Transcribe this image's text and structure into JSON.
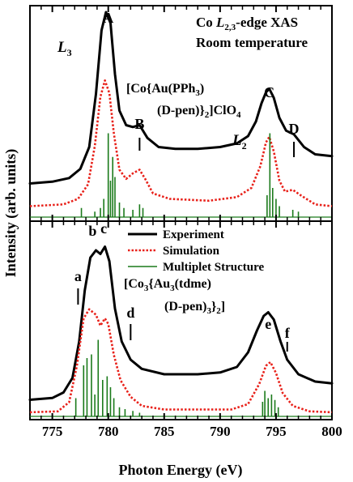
{
  "chart_data": [
    {
      "panel": "top",
      "type": "line",
      "title_line1_prefix": "Co ",
      "title_line1_L": "L",
      "title_line1_sub": "2,3",
      "title_line1_suffix": "-edge XAS",
      "title_line2": "Room temperature",
      "compound_line1": "[Co{Au(PPh",
      "compound_line1_sub": "3",
      "compound_line1_end": ")",
      "compound_line2_a": "(D-pen)}",
      "compound_line2_sub": "2",
      "compound_line2_b": "]ClO",
      "compound_line2_sub2": "4",
      "edge_labels": [
        "L3",
        "L2"
      ],
      "peak_labels": [
        {
          "text": "A",
          "x": 780.0
        },
        {
          "text": "B",
          "x": 782.8
        },
        {
          "text": "C",
          "x": 794.4
        },
        {
          "text": "D",
          "x": 796.6
        }
      ],
      "series": [
        {
          "name": "Experiment",
          "color": "#000000",
          "style": "solid",
          "points": [
            [
              773,
              0.06
            ],
            [
              775,
              0.07
            ],
            [
              776.5,
              0.09
            ],
            [
              777.5,
              0.14
            ],
            [
              778.3,
              0.26
            ],
            [
              778.9,
              0.55
            ],
            [
              779.4,
              0.9
            ],
            [
              779.8,
              1.0
            ],
            [
              780.2,
              0.94
            ],
            [
              780.6,
              0.66
            ],
            [
              781.0,
              0.46
            ],
            [
              781.6,
              0.38
            ],
            [
              782.2,
              0.37
            ],
            [
              782.8,
              0.38
            ],
            [
              783.5,
              0.31
            ],
            [
              784.5,
              0.26
            ],
            [
              786,
              0.25
            ],
            [
              788,
              0.25
            ],
            [
              790,
              0.26
            ],
            [
              791.5,
              0.28
            ],
            [
              792.5,
              0.32
            ],
            [
              793.2,
              0.4
            ],
            [
              793.7,
              0.5
            ],
            [
              794.1,
              0.56
            ],
            [
              794.4,
              0.58
            ],
            [
              794.8,
              0.53
            ],
            [
              795.3,
              0.42
            ],
            [
              795.9,
              0.35
            ],
            [
              796.6,
              0.33
            ],
            [
              797.5,
              0.26
            ],
            [
              798.5,
              0.22
            ],
            [
              800,
              0.21
            ]
          ]
        },
        {
          "name": "Simulation",
          "color": "#e8211a",
          "style": "dotted",
          "points": [
            [
              773,
              0.02
            ],
            [
              776,
              0.03
            ],
            [
              777.3,
              0.06
            ],
            [
              778.2,
              0.14
            ],
            [
              778.8,
              0.35
            ],
            [
              779.3,
              0.62
            ],
            [
              779.7,
              0.71
            ],
            [
              780.1,
              0.64
            ],
            [
              780.5,
              0.42
            ],
            [
              781.0,
              0.22
            ],
            [
              781.6,
              0.17
            ],
            [
              782.2,
              0.2
            ],
            [
              782.8,
              0.22
            ],
            [
              783.3,
              0.17
            ],
            [
              784,
              0.09
            ],
            [
              785.5,
              0.06
            ],
            [
              789,
              0.05
            ],
            [
              791.5,
              0.07
            ],
            [
              792.8,
              0.12
            ],
            [
              793.6,
              0.24
            ],
            [
              794.1,
              0.37
            ],
            [
              794.4,
              0.4
            ],
            [
              794.8,
              0.32
            ],
            [
              795.3,
              0.16
            ],
            [
              795.8,
              0.1
            ],
            [
              796.5,
              0.11
            ],
            [
              797.2,
              0.08
            ],
            [
              798.5,
              0.03
            ],
            [
              800,
              0.02
            ]
          ]
        },
        {
          "name": "Multiplet Structure",
          "color": "#1a7a1a",
          "style": "sticks",
          "sticks": [
            [
              777.6,
              0.05
            ],
            [
              778.8,
              0.03
            ],
            [
              779.3,
              0.05
            ],
            [
              779.6,
              0.1
            ],
            [
              780.0,
              0.46
            ],
            [
              780.2,
              0.2
            ],
            [
              780.4,
              0.33
            ],
            [
              780.6,
              0.22
            ],
            [
              781.0,
              0.08
            ],
            [
              781.4,
              0.05
            ],
            [
              782.2,
              0.04
            ],
            [
              782.8,
              0.07
            ],
            [
              783.1,
              0.05
            ],
            [
              794.2,
              0.12
            ],
            [
              794.45,
              0.46
            ],
            [
              794.7,
              0.16
            ],
            [
              795.0,
              0.1
            ],
            [
              795.3,
              0.06
            ],
            [
              796.5,
              0.04
            ],
            [
              797.0,
              0.03
            ]
          ]
        }
      ]
    },
    {
      "panel": "bottom",
      "type": "line",
      "compound_line1": "[Co",
      "compound_line1_sub": "3",
      "compound_line1_mid": "{Au",
      "compound_line1_sub2": "3",
      "compound_line1_end": "(tdme)",
      "compound_line2_a": "(D-pen)",
      "compound_line2_sub": "3",
      "compound_line2_b": "}",
      "compound_line2_sub2": "2",
      "compound_line2_c": "]",
      "peak_labels": [
        {
          "text": "a",
          "x": 777.3
        },
        {
          "text": "b",
          "x": 778.6
        },
        {
          "text": "c",
          "x": 779.6
        },
        {
          "text": "d",
          "x": 782.0
        },
        {
          "text": "e",
          "x": 794.3
        },
        {
          "text": "f",
          "x": 796.0
        }
      ],
      "series": [
        {
          "name": "Experiment",
          "color": "#000000",
          "style": "solid",
          "points": [
            [
              773,
              0.02
            ],
            [
              775,
              0.03
            ],
            [
              776,
              0.06
            ],
            [
              776.8,
              0.14
            ],
            [
              777.4,
              0.34
            ],
            [
              777.9,
              0.62
            ],
            [
              778.4,
              0.8
            ],
            [
              778.9,
              0.84
            ],
            [
              779.3,
              0.82
            ],
            [
              779.7,
              0.86
            ],
            [
              780.1,
              0.78
            ],
            [
              780.6,
              0.52
            ],
            [
              781.2,
              0.34
            ],
            [
              782.0,
              0.24
            ],
            [
              783,
              0.19
            ],
            [
              785,
              0.16
            ],
            [
              788,
              0.16
            ],
            [
              790,
              0.17
            ],
            [
              791.5,
              0.2
            ],
            [
              792.5,
              0.28
            ],
            [
              793.3,
              0.4
            ],
            [
              793.9,
              0.48
            ],
            [
              794.3,
              0.5
            ],
            [
              794.8,
              0.46
            ],
            [
              795.4,
              0.34
            ],
            [
              796.0,
              0.24
            ],
            [
              797,
              0.16
            ],
            [
              798.5,
              0.12
            ],
            [
              800,
              0.11
            ]
          ]
        },
        {
          "name": "Simulation",
          "color": "#e8211a",
          "style": "dotted",
          "points": [
            [
              773,
              0.005
            ],
            [
              775.5,
              0.01
            ],
            [
              776.5,
              0.06
            ],
            [
              777.2,
              0.26
            ],
            [
              777.8,
              0.52
            ],
            [
              778.3,
              0.57
            ],
            [
              778.9,
              0.54
            ],
            [
              779.3,
              0.48
            ],
            [
              779.7,
              0.52
            ],
            [
              780.0,
              0.49
            ],
            [
              780.5,
              0.32
            ],
            [
              781.1,
              0.18
            ],
            [
              782,
              0.09
            ],
            [
              783,
              0.04
            ],
            [
              785,
              0.02
            ],
            [
              791,
              0.02
            ],
            [
              792.5,
              0.05
            ],
            [
              793.5,
              0.16
            ],
            [
              794.1,
              0.26
            ],
            [
              794.5,
              0.28
            ],
            [
              795.0,
              0.22
            ],
            [
              795.6,
              0.11
            ],
            [
              796.5,
              0.04
            ],
            [
              798,
              0.01
            ],
            [
              800,
              0.005
            ]
          ]
        },
        {
          "name": "Multiplet Structure",
          "color": "#1a7a1a",
          "style": "sticks",
          "sticks": [
            [
              777.1,
              0.1
            ],
            [
              777.8,
              0.28
            ],
            [
              778.1,
              0.32
            ],
            [
              778.5,
              0.34
            ],
            [
              778.8,
              0.12
            ],
            [
              779.1,
              0.42
            ],
            [
              779.5,
              0.2
            ],
            [
              779.9,
              0.22
            ],
            [
              780.2,
              0.16
            ],
            [
              780.5,
              0.1
            ],
            [
              781.0,
              0.05
            ],
            [
              781.5,
              0.04
            ],
            [
              782.2,
              0.03
            ],
            [
              782.8,
              0.02
            ],
            [
              793.8,
              0.08
            ],
            [
              794.0,
              0.14
            ],
            [
              794.3,
              0.1
            ],
            [
              794.6,
              0.12
            ],
            [
              794.9,
              0.09
            ],
            [
              795.2,
              0.05
            ]
          ]
        }
      ]
    }
  ],
  "legend": {
    "placement": "middle-right",
    "entries": [
      {
        "label": "Experiment",
        "color": "#000000",
        "style": "solid"
      },
      {
        "label": "Simulation",
        "color": "#e8211a",
        "style": "dotted"
      },
      {
        "label": "Multiplet Structure",
        "color": "#1a7a1a",
        "style": "solid-thin"
      }
    ]
  },
  "x_axis": {
    "label": "Photon Energy (eV)",
    "range": [
      773,
      800
    ],
    "ticks": [
      775,
      780,
      785,
      790,
      795,
      800
    ],
    "tick_labels": [
      "775",
      "780",
      "785",
      "790",
      "795",
      "800"
    ]
  },
  "y_axis": {
    "label": "Intensity (arb. units)"
  }
}
